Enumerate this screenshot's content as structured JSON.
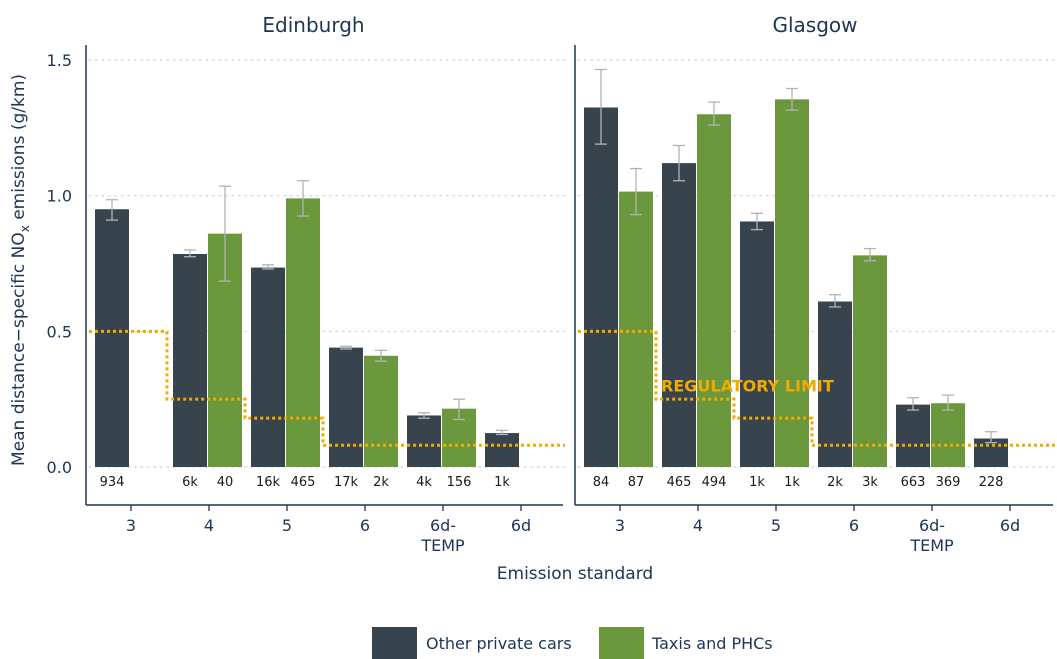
{
  "chart_data": {
    "type": "bar",
    "ylabel": "Mean distance−specific NOₓ emissions (g/km)",
    "ylabel_main": "Mean distance−specific NO",
    "ylabel_sub": "x",
    "ylabel_tail": " emissions (g/km)",
    "xlabel": "Emission standard",
    "ylim": [
      0,
      1.55
    ],
    "yticks": [
      0.0,
      0.5,
      1.0,
      1.5
    ],
    "ytick_labels": [
      "0.0",
      "0.5",
      "1.0",
      "1.5"
    ],
    "grid": "horizontal dotted",
    "legend_position": "bottom",
    "categories": [
      "3",
      "4",
      "5",
      "6",
      "6d-TEMP",
      "6d"
    ],
    "category_lines": [
      [
        "3"
      ],
      [
        "4"
      ],
      [
        "5"
      ],
      [
        "6"
      ],
      [
        "6d-",
        "TEMP"
      ],
      [
        "6d"
      ]
    ],
    "colors": {
      "other": "#37444e",
      "taxi": "#6b983c",
      "error": "#b3b3b3",
      "limit": "#f2a900",
      "axis": "#1d3557"
    },
    "series_keys": [
      "other",
      "taxi"
    ],
    "legend": [
      {
        "key": "other",
        "label": "Other private cars"
      },
      {
        "key": "taxi",
        "label": "Taxis and PHCs"
      }
    ],
    "regulatory_limit_label": "REGULATORY LIMIT",
    "regulatory_limit_values": [
      0.5,
      0.25,
      0.18,
      0.08,
      0.08,
      0.08
    ],
    "panels": [
      {
        "title": "Edinburgh",
        "show_limit_label": false,
        "groups": [
          {
            "category": "3",
            "other": {
              "value": 0.95,
              "err": [
                0.91,
                0.985
              ],
              "n": "934"
            },
            "taxi": null
          },
          {
            "category": "4",
            "other": {
              "value": 0.785,
              "err": [
                0.775,
                0.8
              ],
              "n": "6k"
            },
            "taxi": {
              "value": 0.86,
              "err": [
                0.685,
                1.035
              ],
              "n": "40"
            }
          },
          {
            "category": "5",
            "other": {
              "value": 0.735,
              "err": [
                0.73,
                0.745
              ],
              "n": "16k"
            },
            "taxi": {
              "value": 0.99,
              "err": [
                0.925,
                1.055
              ],
              "n": "465"
            }
          },
          {
            "category": "6",
            "other": {
              "value": 0.44,
              "err": [
                0.435,
                0.445
              ],
              "n": "17k"
            },
            "taxi": {
              "value": 0.41,
              "err": [
                0.39,
                0.43
              ],
              "n": "2k"
            }
          },
          {
            "category": "6d-TEMP",
            "other": {
              "value": 0.19,
              "err": [
                0.18,
                0.2
              ],
              "n": "4k"
            },
            "taxi": {
              "value": 0.215,
              "err": [
                0.175,
                0.25
              ],
              "n": "156"
            }
          },
          {
            "category": "6d",
            "other": {
              "value": 0.125,
              "err": [
                0.12,
                0.135
              ],
              "n": "1k"
            },
            "taxi": null
          }
        ]
      },
      {
        "title": "Glasgow",
        "show_limit_label": true,
        "groups": [
          {
            "category": "3",
            "other": {
              "value": 1.325,
              "err": [
                1.19,
                1.465
              ],
              "n": "84"
            },
            "taxi": {
              "value": 1.015,
              "err": [
                0.93,
                1.1
              ],
              "n": "87"
            }
          },
          {
            "category": "4",
            "other": {
              "value": 1.12,
              "err": [
                1.055,
                1.185
              ],
              "n": "465"
            },
            "taxi": {
              "value": 1.3,
              "err": [
                1.26,
                1.345
              ],
              "n": "494"
            }
          },
          {
            "category": "5",
            "other": {
              "value": 0.905,
              "err": [
                0.875,
                0.935
              ],
              "n": "1k"
            },
            "taxi": {
              "value": 1.355,
              "err": [
                1.315,
                1.395
              ],
              "n": "1k"
            }
          },
          {
            "category": "6",
            "other": {
              "value": 0.61,
              "err": [
                0.59,
                0.635
              ],
              "n": "2k"
            },
            "taxi": {
              "value": 0.78,
              "err": [
                0.76,
                0.805
              ],
              "n": "3k"
            }
          },
          {
            "category": "6d-TEMP",
            "other": {
              "value": 0.23,
              "err": [
                0.21,
                0.255
              ],
              "n": "663"
            },
            "taxi": {
              "value": 0.235,
              "err": [
                0.21,
                0.265
              ],
              "n": "369"
            }
          },
          {
            "category": "6d",
            "other": {
              "value": 0.105,
              "err": [
                0.09,
                0.13
              ],
              "n": "228"
            },
            "taxi": null
          }
        ]
      }
    ]
  }
}
